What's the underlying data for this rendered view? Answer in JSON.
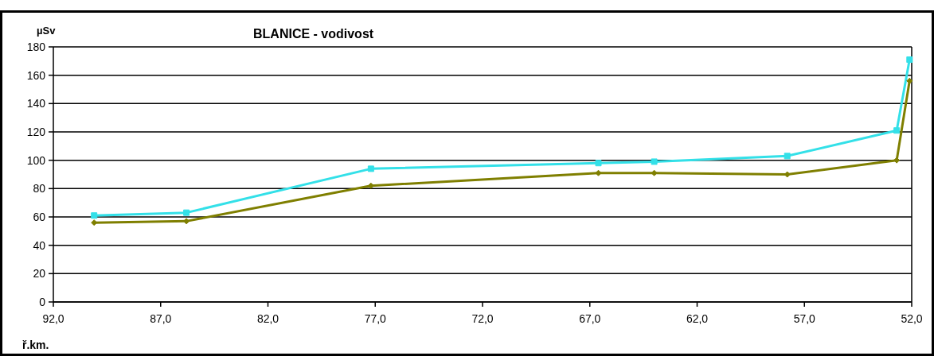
{
  "chart_data": {
    "type": "line",
    "title": "BLANICE - vodivost",
    "ylabel": "µSv",
    "xlabel": "ř.km.",
    "x": [
      90.1,
      85.8,
      77.2,
      66.6,
      64.0,
      57.8,
      52.7,
      52.1
    ],
    "series": [
      {
        "color": "#33e0e8",
        "marker": "square",
        "values": [
          61,
          63,
          94,
          98,
          99,
          103,
          121,
          171
        ]
      },
      {
        "color": "#7f7f00",
        "marker": "diamond",
        "values": [
          56,
          57,
          82,
          91,
          91,
          90,
          100,
          156
        ]
      }
    ],
    "xlim": [
      92,
      52
    ],
    "xticks": [
      {
        "value": 92,
        "label": "92,0"
      },
      {
        "value": 87,
        "label": "87,0"
      },
      {
        "value": 82,
        "label": "82,0"
      },
      {
        "value": 77,
        "label": "77,0"
      },
      {
        "value": 72,
        "label": "72,0"
      },
      {
        "value": 67,
        "label": "67,0"
      },
      {
        "value": 62,
        "label": "62,0"
      },
      {
        "value": 57,
        "label": "57,0"
      },
      {
        "value": 52,
        "label": "52,0"
      }
    ],
    "ylim": [
      0,
      180
    ],
    "yticks": [
      0,
      20,
      40,
      60,
      80,
      100,
      120,
      140,
      160,
      180
    ],
    "grid": "y",
    "line_style": "solid"
  }
}
